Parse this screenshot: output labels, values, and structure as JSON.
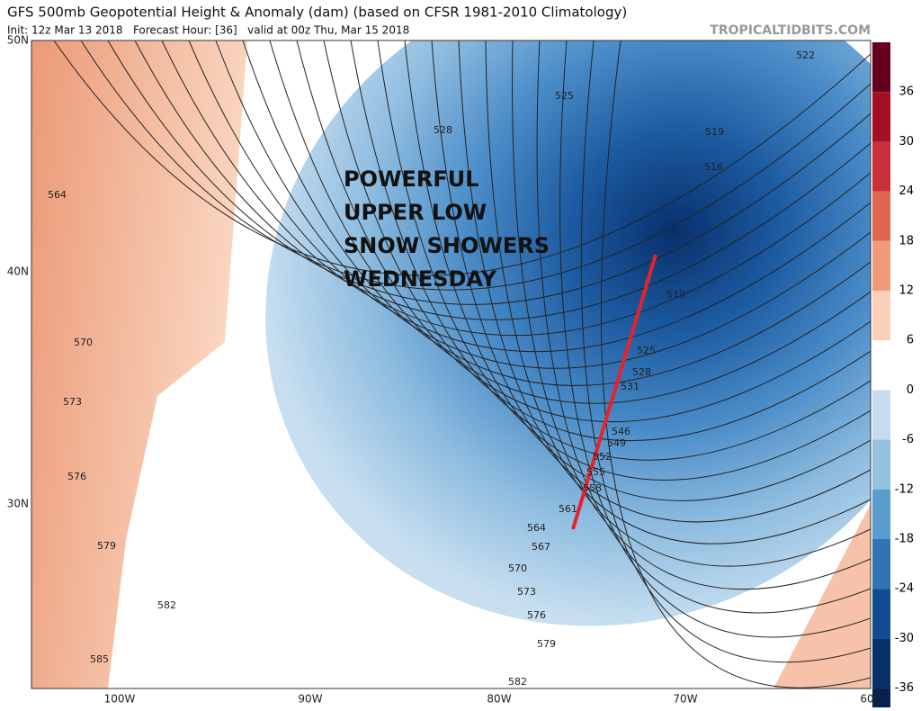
{
  "header": {
    "title": "GFS 500mb Geopotential Height & Anomaly (dam) (based on CFSR 1981-2010 Climatology)",
    "subtitle": "Init: 12z Mar 13 2018   Forecast Hour: [36]   valid at 00z Thu, Mar 15 2018",
    "source": "TROPICALTIDBITS.COM"
  },
  "annotation": [
    "POWERFUL",
    "UPPER LOW",
    "SNOW SHOWERS",
    "WEDNESDAY"
  ],
  "colorbar": {
    "ticks": [
      36,
      30,
      24,
      18,
      12,
      6,
      0,
      -6,
      -12,
      -18,
      -24,
      -30,
      -36
    ]
  },
  "lat_labels": [
    "50N",
    "40N",
    "30N"
  ],
  "lon_labels": [
    "100W",
    "90W",
    "80W",
    "70W",
    "60W"
  ],
  "contour_labels": [
    "522",
    "525",
    "528",
    "519",
    "516",
    "564",
    "570",
    "573",
    "576",
    "579",
    "582",
    "585",
    "519",
    "525",
    "528",
    "531",
    "546",
    "549",
    "552",
    "555",
    "558",
    "561",
    "564",
    "567",
    "570",
    "573",
    "576",
    "579",
    "582"
  ]
}
